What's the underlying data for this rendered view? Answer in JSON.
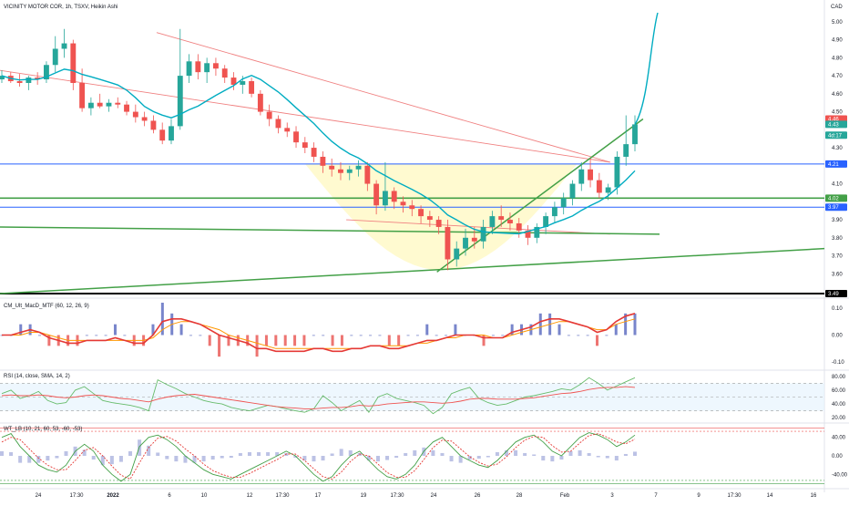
{
  "chart_data": [
    {
      "type": "candlestick",
      "title": "VICINITY MOTOR COR, 1h, TSXV, Heikin Ashi",
      "currency": "CAD",
      "ylim": [
        3.49,
        5.05
      ],
      "y_ticks": [
        "5.00",
        "4.90",
        "4.80",
        "4.70",
        "4.60",
        "4.50",
        "4.30",
        "4.10",
        "3.90",
        "3.80",
        "3.70",
        "3.60"
      ],
      "x_ticks": [
        "24",
        "17:30",
        "2022",
        "6",
        "10",
        "12",
        "17:30",
        "17",
        "19",
        "17:30",
        "24",
        "26",
        "28",
        "Feb",
        "3",
        "7",
        "9",
        "17:30",
        "14",
        "16"
      ],
      "price_labels": [
        {
          "text": "4.46",
          "value": 4.46,
          "color": "#ef5350"
        },
        {
          "text": "4.43",
          "value": 4.43,
          "color": "#26a69a"
        },
        {
          "text": "4d:17",
          "value": 4.37,
          "color": "#26a69a"
        },
        {
          "text": "4.21",
          "value": 4.21,
          "color": "#2962ff"
        },
        {
          "text": "4.02",
          "value": 4.02,
          "color": "#43a047"
        },
        {
          "text": "3.97",
          "value": 3.97,
          "color": "#2962ff"
        },
        {
          "text": "3.49",
          "value": 3.49,
          "color": "#000000"
        }
      ],
      "horizontal_levels": [
        {
          "value": 4.21,
          "color": "#2962ff"
        },
        {
          "value": 4.02,
          "color": "#43a047"
        },
        {
          "value": 3.97,
          "color": "#2962ff"
        },
        {
          "value": 3.49,
          "color": "#000000"
        }
      ],
      "colors": {
        "up": "#26a69a",
        "down": "#ef5350",
        "ma": "#00acc1",
        "trend_red": "#f08080",
        "trend_green": "#43a047",
        "cup_fill": "#fff9c4"
      },
      "ohlc": [
        [
          4.68,
          4.73,
          4.66,
          4.7
        ],
        [
          4.7,
          4.72,
          4.66,
          4.67
        ],
        [
          4.67,
          4.71,
          4.64,
          4.66
        ],
        [
          4.66,
          4.7,
          4.62,
          4.69
        ],
        [
          4.69,
          4.72,
          4.65,
          4.68
        ],
        [
          4.68,
          4.78,
          4.66,
          4.76
        ],
        [
          4.76,
          4.92,
          4.72,
          4.85
        ],
        [
          4.85,
          4.96,
          4.8,
          4.88
        ],
        [
          4.88,
          4.9,
          4.62,
          4.66
        ],
        [
          4.66,
          4.74,
          4.5,
          4.52
        ],
        [
          4.52,
          4.58,
          4.48,
          4.55
        ],
        [
          4.55,
          4.6,
          4.52,
          4.53
        ],
        [
          4.53,
          4.57,
          4.5,
          4.55
        ],
        [
          4.55,
          4.58,
          4.52,
          4.54
        ],
        [
          4.54,
          4.56,
          4.48,
          4.5
        ],
        [
          4.5,
          4.54,
          4.44,
          4.47
        ],
        [
          4.47,
          4.5,
          4.42,
          4.45
        ],
        [
          4.45,
          4.48,
          4.38,
          4.4
        ],
        [
          4.4,
          4.44,
          4.32,
          4.34
        ],
        [
          4.34,
          4.46,
          4.32,
          4.42
        ],
        [
          4.42,
          4.96,
          4.4,
          4.7
        ],
        [
          4.7,
          4.82,
          4.66,
          4.78
        ],
        [
          4.78,
          4.82,
          4.68,
          4.72
        ],
        [
          4.72,
          4.8,
          4.66,
          4.77
        ],
        [
          4.77,
          4.8,
          4.7,
          4.74
        ],
        [
          4.74,
          4.76,
          4.66,
          4.69
        ],
        [
          4.69,
          4.72,
          4.62,
          4.65
        ],
        [
          4.65,
          4.7,
          4.6,
          4.67
        ],
        [
          4.67,
          4.69,
          4.58,
          4.6
        ],
        [
          4.6,
          4.62,
          4.48,
          4.5
        ],
        [
          4.5,
          4.54,
          4.42,
          4.46
        ],
        [
          4.46,
          4.48,
          4.38,
          4.41
        ],
        [
          4.41,
          4.44,
          4.36,
          4.39
        ],
        [
          4.39,
          4.42,
          4.3,
          4.33
        ],
        [
          4.33,
          4.36,
          4.27,
          4.3
        ],
        [
          4.3,
          4.33,
          4.22,
          4.25
        ],
        [
          4.25,
          4.28,
          4.16,
          4.2
        ],
        [
          4.2,
          4.24,
          4.14,
          4.18
        ],
        [
          4.18,
          4.22,
          4.12,
          4.16
        ],
        [
          4.16,
          4.2,
          4.12,
          4.18
        ],
        [
          4.18,
          4.23,
          4.14,
          4.2
        ],
        [
          4.2,
          4.22,
          4.06,
          4.1
        ],
        [
          4.1,
          4.12,
          3.93,
          3.98
        ],
        [
          3.98,
          4.22,
          3.95,
          4.06
        ],
        [
          4.06,
          4.08,
          3.96,
          4.0
        ],
        [
          4.0,
          4.03,
          3.94,
          3.98
        ],
        [
          3.98,
          4.01,
          3.92,
          3.96
        ],
        [
          3.96,
          3.98,
          3.88,
          3.92
        ],
        [
          3.92,
          3.95,
          3.86,
          3.9
        ],
        [
          3.9,
          3.92,
          3.82,
          3.86
        ],
        [
          3.86,
          3.9,
          3.62,
          3.68
        ],
        [
          3.68,
          3.78,
          3.64,
          3.74
        ],
        [
          3.74,
          3.85,
          3.7,
          3.8
        ],
        [
          3.8,
          3.86,
          3.74,
          3.78
        ],
        [
          3.78,
          3.9,
          3.74,
          3.86
        ],
        [
          3.86,
          3.95,
          3.82,
          3.92
        ],
        [
          3.92,
          3.98,
          3.86,
          3.9
        ],
        [
          3.9,
          3.94,
          3.84,
          3.88
        ],
        [
          3.88,
          3.91,
          3.8,
          3.84
        ],
        [
          3.84,
          3.87,
          3.76,
          3.8
        ],
        [
          3.8,
          3.88,
          3.77,
          3.86
        ],
        [
          3.86,
          3.94,
          3.82,
          3.92
        ],
        [
          3.92,
          4.0,
          3.88,
          3.97
        ],
        [
          3.97,
          4.05,
          3.93,
          4.02
        ],
        [
          4.02,
          4.12,
          3.98,
          4.1
        ],
        [
          4.1,
          4.22,
          4.06,
          4.18
        ],
        [
          4.18,
          4.24,
          4.08,
          4.12
        ],
        [
          4.12,
          4.16,
          4.02,
          4.05
        ],
        [
          4.05,
          4.1,
          4.01,
          4.08
        ],
        [
          4.08,
          4.28,
          4.04,
          4.25
        ],
        [
          4.25,
          4.48,
          4.2,
          4.32
        ],
        [
          4.32,
          4.48,
          4.28,
          4.43
        ]
      ],
      "trend_lines": [
        {
          "color": "#f08080",
          "from": [
            0.0,
            4.73
          ],
          "to": [
            0.74,
            4.22
          ]
        },
        {
          "color": "#f08080",
          "from": [
            0.19,
            4.94
          ],
          "to": [
            0.74,
            4.22
          ]
        },
        {
          "color": "#f08080",
          "from": [
            0.42,
            3.9
          ],
          "to": [
            0.74,
            3.82
          ]
        },
        {
          "color": "#43a047",
          "from": [
            0.0,
            3.86
          ],
          "to": [
            0.8,
            3.82
          ]
        },
        {
          "color": "#43a047",
          "from": [
            0.53,
            3.61
          ],
          "to": [
            0.78,
            4.46
          ]
        },
        {
          "color": "#43a047",
          "from": [
            0.0,
            3.49
          ],
          "to": [
            1.0,
            3.74
          ]
        }
      ]
    },
    {
      "type": "line",
      "title": "CM_Ult_MacD_MTF (60, 12, 26, 9)",
      "ylim": [
        -0.1,
        0.1
      ],
      "y_ticks": [
        "0.10",
        "0.00",
        "-0.10"
      ],
      "series": [
        {
          "values": [
            0.0,
            0.0,
            0.01,
            0.02,
            0.01,
            -0.01,
            -0.02,
            -0.03,
            -0.03,
            -0.02,
            -0.02,
            -0.02,
            -0.01,
            -0.02,
            -0.03,
            -0.03,
            0.0,
            0.05,
            0.06,
            0.06,
            0.05,
            0.04,
            0.02,
            0.0,
            -0.01,
            -0.02,
            -0.03,
            -0.05,
            -0.05,
            -0.06,
            -0.06,
            -0.06,
            -0.06,
            -0.05,
            -0.05,
            -0.06,
            -0.06,
            -0.05,
            -0.05,
            -0.04,
            -0.04,
            -0.05,
            -0.05,
            -0.04,
            -0.03,
            -0.02,
            -0.02,
            -0.01,
            0.0,
            0.0,
            0.0,
            -0.01,
            -0.01,
            -0.01,
            0.01,
            0.02,
            0.03,
            0.05,
            0.06,
            0.06,
            0.05,
            0.04,
            0.03,
            0.01,
            0.02,
            0.05,
            0.07,
            0.08
          ]
        },
        {
          "values": [
            0.0,
            0.0,
            0.0,
            0.01,
            0.01,
            0.0,
            -0.01,
            -0.02,
            -0.02,
            -0.02,
            -0.02,
            -0.02,
            -0.02,
            -0.02,
            -0.02,
            -0.02,
            -0.01,
            0.02,
            0.04,
            0.05,
            0.05,
            0.04,
            0.03,
            0.02,
            0.0,
            -0.01,
            -0.02,
            -0.03,
            -0.04,
            -0.05,
            -0.05,
            -0.05,
            -0.05,
            -0.05,
            -0.05,
            -0.05,
            -0.05,
            -0.05,
            -0.05,
            -0.04,
            -0.04,
            -0.04,
            -0.04,
            -0.04,
            -0.03,
            -0.03,
            -0.02,
            -0.01,
            -0.01,
            0.0,
            0.0,
            0.0,
            -0.01,
            -0.01,
            0.0,
            0.01,
            0.02,
            0.03,
            0.04,
            0.05,
            0.05,
            0.04,
            0.03,
            0.02,
            0.02,
            0.04,
            0.05,
            0.06
          ]
        }
      ]
    },
    {
      "type": "line",
      "title": "RSI (14, close, SMA, 14, 2)",
      "ylim": [
        20,
        80
      ],
      "y_ticks": [
        "80.00",
        "60.00",
        "40.00",
        "20.00"
      ],
      "bands": [
        30,
        50,
        70
      ],
      "series": [
        {
          "values": [
            55,
            60,
            48,
            52,
            58,
            45,
            40,
            42,
            60,
            65,
            55,
            45,
            42,
            40,
            38,
            35,
            30,
            75,
            68,
            62,
            55,
            50,
            45,
            42,
            40,
            35,
            32,
            30,
            34,
            38,
            36,
            33,
            30,
            28,
            33,
            52,
            42,
            30,
            38,
            45,
            28,
            50,
            55,
            48,
            45,
            42,
            38,
            26,
            35,
            55,
            60,
            64,
            48,
            42,
            38,
            40,
            45,
            50,
            52,
            55,
            58,
            62,
            60,
            68,
            78,
            70,
            60,
            66,
            72,
            78
          ]
        },
        {
          "values": [
            52,
            53,
            52,
            52,
            53,
            52,
            50,
            49,
            50,
            52,
            53,
            52,
            50,
            48,
            47,
            45,
            43,
            47,
            50,
            52,
            53,
            54,
            52,
            50,
            48,
            46,
            44,
            42,
            40,
            38,
            36,
            35,
            34,
            33,
            33,
            34,
            35,
            35,
            36,
            38,
            37,
            38,
            40,
            41,
            42,
            43,
            43,
            42,
            41,
            42,
            44,
            47,
            48,
            48,
            47,
            47,
            47,
            48,
            49,
            51,
            53,
            55,
            56,
            58,
            61,
            63,
            64,
            64,
            65,
            64
          ]
        }
      ]
    },
    {
      "type": "line",
      "title": "WT_LB (10, 21, 60, 53, -60, -53)",
      "ylim": [
        -60,
        60
      ],
      "y_ticks": [
        "40.00",
        "0.00",
        "-40.00"
      ],
      "bands": [
        60,
        53,
        -53,
        -60
      ],
      "series": [
        {
          "values": [
            40,
            48,
            20,
            0,
            -20,
            -30,
            -35,
            -20,
            10,
            25,
            10,
            -20,
            -40,
            -55,
            -40,
            20,
            40,
            45,
            35,
            20,
            0,
            -15,
            -30,
            -40,
            -45,
            -50,
            -40,
            -30,
            -20,
            -10,
            0,
            10,
            0,
            -20,
            -40,
            -55,
            -45,
            -20,
            0,
            10,
            -10,
            -30,
            -45,
            -50,
            -40,
            -20,
            10,
            30,
            40,
            20,
            0,
            -10,
            -20,
            -25,
            -10,
            10,
            30,
            40,
            45,
            30,
            10,
            0,
            20,
            40,
            50,
            45,
            35,
            20,
            30,
            45
          ]
        },
        {
          "values": [
            30,
            40,
            35,
            15,
            -5,
            -20,
            -30,
            -30,
            -10,
            12,
            18,
            0,
            -22,
            -42,
            -50,
            -15,
            18,
            38,
            42,
            32,
            15,
            0,
            -18,
            -32,
            -40,
            -46,
            -46,
            -38,
            -28,
            -18,
            -8,
            4,
            4,
            -10,
            -28,
            -45,
            -50,
            -35,
            -12,
            4,
            0,
            -18,
            -36,
            -46,
            -46,
            -32,
            -8,
            18,
            34,
            32,
            15,
            -2,
            -14,
            -22,
            -18,
            -2,
            18,
            34,
            42,
            40,
            22,
            8,
            10,
            28,
            44,
            48,
            40,
            30,
            26,
            36
          ]
        }
      ]
    }
  ]
}
